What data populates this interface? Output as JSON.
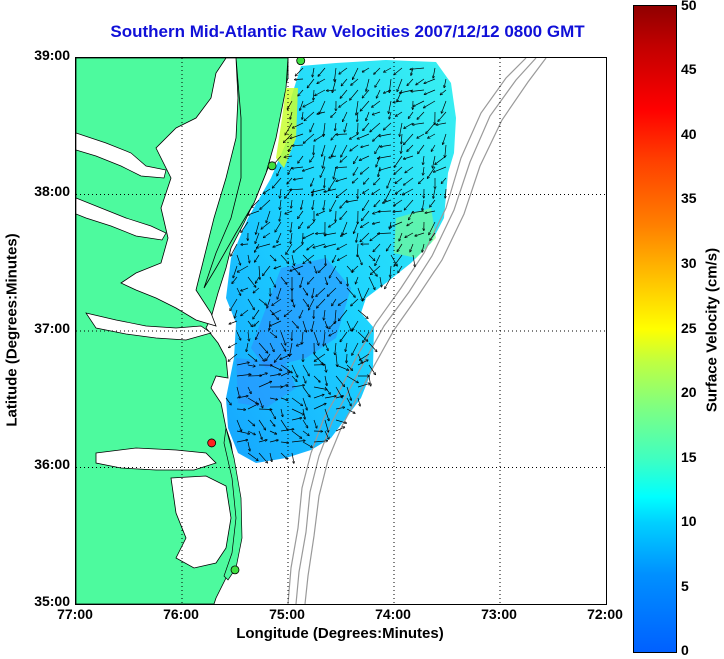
{
  "title": "Southern Mid-Atlantic Raw Velocities 2007/12/12 0800 GMT",
  "xlabel": "Longitude (Degrees:Minutes)",
  "ylabel": "Latitude (Degrees:Minutes)",
  "x_ticks": [
    "77:00",
    "76:00",
    "75:00",
    "74:00",
    "73:00",
    "72:00"
  ],
  "y_ticks": [
    "39:00",
    "38:00",
    "37:00",
    "36:00",
    "35:00"
  ],
  "colorbar": {
    "label": "Surface Velocity (cm/s)",
    "ticks": [
      "50",
      "45",
      "40",
      "35",
      "30",
      "25",
      "20",
      "15",
      "10",
      "5",
      "0"
    ]
  },
  "colors": {
    "land": "#4dfa9e",
    "title": "#1010d8"
  },
  "stations": [
    {
      "lon": -74.88,
      "lat": 38.98,
      "status": "green"
    },
    {
      "lon": -75.15,
      "lat": 38.21,
      "status": "green"
    },
    {
      "lon": -75.72,
      "lat": 36.18,
      "status": "red"
    },
    {
      "lon": -75.5,
      "lat": 35.25,
      "status": "green"
    }
  ]
}
